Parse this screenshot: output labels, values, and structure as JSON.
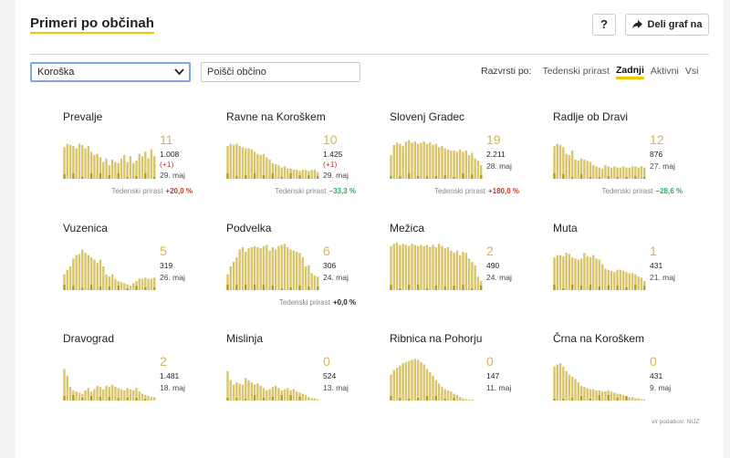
{
  "header": {
    "title": "Primeri po občinah",
    "help_label": "?",
    "share_label": "Deli graf na"
  },
  "filters": {
    "region_value": "Koroška",
    "search_placeholder": "Poišči občino",
    "sort_label": "Razvrsti po:",
    "sort_options": [
      "Tedenski prirast",
      "Zadnji",
      "Aktivni",
      "Vsi"
    ],
    "sort_active": "Zadnji"
  },
  "colors": {
    "bar": "#d9c46a",
    "bar_dark": "#b89b1a",
    "accent": "#f0c800",
    "up": "#c0392b",
    "down": "#27ae60",
    "big_number": "#d6b553"
  },
  "footer": {
    "source": "vir podatkov: NIJZ"
  },
  "chart_data": [
    {
      "type": "bar",
      "name": "Prevalje",
      "active": "11",
      "total": "1.008",
      "delta": "(+1)",
      "date": "29. maj",
      "growth_label": "Tedenski prirast",
      "growth": "+20,0 %",
      "growth_dir": "up",
      "values": [
        28,
        31,
        30,
        29,
        27,
        31,
        30,
        27,
        29,
        24,
        21,
        22,
        19,
        15,
        18,
        12,
        17,
        15,
        14,
        18,
        21,
        15,
        20,
        14,
        16,
        22,
        20,
        24,
        18,
        26,
        20
      ]
    },
    {
      "type": "bar",
      "name": "Ravne na Koroškem",
      "active": "10",
      "total": "1.425",
      "delta": "(+1)",
      "date": "29. maj",
      "growth_label": "Tedenski prirast",
      "growth": "−33,3 %",
      "growth_dir": "down",
      "values": [
        29,
        31,
        30,
        31,
        29,
        28,
        27,
        27,
        26,
        24,
        22,
        21,
        22,
        19,
        17,
        14,
        13,
        12,
        10,
        11,
        9,
        9,
        8,
        8,
        7,
        8,
        8,
        7,
        8,
        8,
        6
      ]
    },
    {
      "type": "bar",
      "name": "Slovenj Gradec",
      "active": "19",
      "total": "2.211",
      "delta": "",
      "date": "28. maj",
      "growth_label": "Tedenski prirast",
      "growth": "+180,0 %",
      "growth_dir": "up",
      "values": [
        21,
        30,
        32,
        31,
        29,
        33,
        34,
        32,
        33,
        31,
        32,
        33,
        31,
        32,
        30,
        31,
        28,
        29,
        27,
        26,
        25,
        25,
        24,
        26,
        24,
        25,
        21,
        23,
        18,
        16,
        12
      ]
    },
    {
      "type": "bar",
      "name": "Radlje ob Dravi",
      "active": "12",
      "total": "876",
      "delta": "",
      "date": "27. maj",
      "growth_label": "Tedenski prirast",
      "growth": "−28,6 %",
      "growth_dir": "down",
      "values": [
        29,
        31,
        30,
        28,
        22,
        21,
        25,
        17,
        16,
        18,
        17,
        16,
        15,
        12,
        11,
        10,
        9,
        12,
        11,
        10,
        11,
        10,
        10,
        11,
        10,
        10,
        11,
        11,
        10,
        11,
        10
      ]
    },
    {
      "type": "bar",
      "name": "Vuzenica",
      "active": "5",
      "total": "319",
      "delta": "",
      "date": "26. maj",
      "growth_label": "",
      "growth": "",
      "growth_dir": "",
      "values": [
        14,
        18,
        21,
        28,
        31,
        32,
        36,
        33,
        31,
        29,
        27,
        24,
        27,
        21,
        14,
        12,
        14,
        10,
        8,
        7,
        6,
        5,
        4,
        6,
        8,
        10,
        10,
        11,
        10,
        10,
        11
      ]
    },
    {
      "type": "bar",
      "name": "Podvelka",
      "active": "6",
      "total": "306",
      "delta": "",
      "date": "24. maj",
      "growth_label": "Tedenski prirast",
      "growth": "+0,0 %",
      "growth_dir": "zero",
      "values": [
        14,
        21,
        25,
        29,
        36,
        38,
        34,
        37,
        38,
        39,
        38,
        37,
        39,
        40,
        35,
        38,
        36,
        39,
        40,
        41,
        38,
        36,
        35,
        34,
        33,
        29,
        21,
        22,
        15,
        13,
        12
      ]
    },
    {
      "type": "bar",
      "name": "Mežica",
      "active": "2",
      "total": "490",
      "delta": "",
      "date": "24. maj",
      "growth_label": "",
      "growth": "",
      "growth_dir": "",
      "values": [
        39,
        41,
        42,
        40,
        41,
        40,
        39,
        41,
        40,
        39,
        40,
        39,
        40,
        38,
        40,
        38,
        41,
        39,
        37,
        38,
        35,
        33,
        35,
        31,
        34,
        33,
        28,
        25,
        22,
        12,
        8
      ]
    },
    {
      "type": "bar",
      "name": "Muta",
      "active": "1",
      "total": "431",
      "delta": "",
      "date": "21. maj",
      "growth_label": "",
      "growth": "",
      "growth_dir": "",
      "values": [
        29,
        31,
        31,
        30,
        33,
        32,
        29,
        28,
        27,
        28,
        33,
        30,
        29,
        31,
        28,
        27,
        23,
        19,
        18,
        17,
        16,
        18,
        18,
        17,
        16,
        15,
        15,
        14,
        12,
        11,
        8
      ]
    },
    {
      "type": "bar",
      "name": "Dravograd",
      "active": "2",
      "total": "1.481",
      "delta": "",
      "date": "18. maj",
      "growth_label": "",
      "growth": "",
      "growth_dir": "",
      "values": [
        28,
        22,
        12,
        9,
        8,
        7,
        6,
        9,
        11,
        8,
        10,
        13,
        12,
        10,
        13,
        12,
        14,
        12,
        11,
        10,
        9,
        11,
        10,
        9,
        11,
        8,
        6,
        5,
        4,
        3,
        3
      ]
    },
    {
      "type": "bar",
      "name": "Mislinja",
      "active": "0",
      "total": "524",
      "delta": "",
      "date": "13. maj",
      "growth_label": "",
      "growth": "",
      "growth_dir": "",
      "values": [
        26,
        18,
        14,
        16,
        15,
        14,
        20,
        18,
        16,
        14,
        15,
        13,
        11,
        9,
        10,
        12,
        13,
        11,
        9,
        10,
        11,
        9,
        10,
        8,
        7,
        6,
        5,
        3,
        2,
        2,
        1
      ]
    },
    {
      "type": "bar",
      "name": "Ribnica na Pohorju",
      "active": "0",
      "total": "147",
      "delta": "",
      "date": "11. maj",
      "growth_label": "",
      "growth": "",
      "growth_dir": "",
      "values": [
        23,
        27,
        29,
        31,
        33,
        34,
        35,
        36,
        37,
        36,
        34,
        32,
        28,
        25,
        22,
        18,
        15,
        12,
        10,
        9,
        8,
        6,
        5,
        3,
        2,
        1,
        1,
        1,
        0,
        0,
        0
      ]
    },
    {
      "type": "bar",
      "name": "Črna na Koroškem",
      "active": "0",
      "total": "431",
      "delta": "",
      "date": "9. maj",
      "growth_label": "",
      "growth": "",
      "growth_dir": "",
      "values": [
        30,
        32,
        33,
        30,
        26,
        23,
        21,
        19,
        16,
        13,
        12,
        11,
        10,
        10,
        9,
        9,
        8,
        8,
        9,
        8,
        7,
        6,
        6,
        5,
        4,
        3,
        3,
        2,
        2,
        1,
        1
      ]
    }
  ]
}
